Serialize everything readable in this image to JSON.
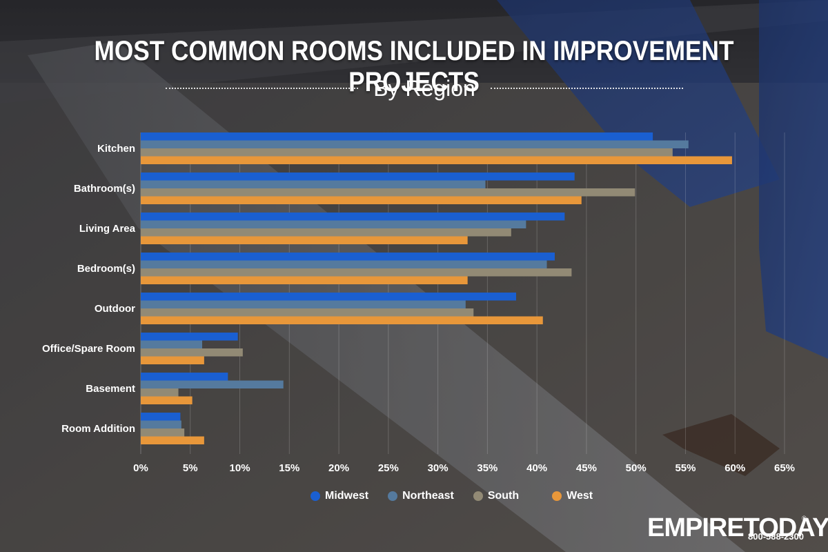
{
  "header": {
    "title": "MOST COMMON ROOMS INCLUDED IN IMPROVEMENT PROJECTS",
    "subtitle": "By Region"
  },
  "logo": {
    "text": "EMPIRETODAY",
    "phone": "800-588-2300",
    "reg": "®"
  },
  "colors": {
    "Midwest": "#1a5fd1",
    "Northeast": "#557a9e",
    "South": "#928a75",
    "West": "#e8973a"
  },
  "chart_data": {
    "type": "bar",
    "orientation": "horizontal",
    "title": "MOST COMMON ROOMS INCLUDED IN IMPROVEMENT PROJECTS",
    "subtitle": "By Region",
    "categories": [
      "Kitchen",
      "Bathroom(s)",
      "Living Area",
      "Bedroom(s)",
      "Outdoor",
      "Office/Spare Room",
      "Basement",
      "Room Addition"
    ],
    "series": [
      {
        "name": "Midwest",
        "values": [
          51.7,
          43.8,
          42.8,
          41.8,
          37.9,
          9.8,
          8.8,
          4.0
        ]
      },
      {
        "name": "Northeast",
        "values": [
          55.3,
          34.8,
          38.9,
          41.0,
          32.8,
          6.2,
          14.4,
          4.1
        ]
      },
      {
        "name": "South",
        "values": [
          53.7,
          49.9,
          37.4,
          43.5,
          33.6,
          10.3,
          3.8,
          4.4
        ]
      },
      {
        "name": "West",
        "values": [
          59.7,
          44.5,
          33.0,
          33.0,
          40.6,
          6.4,
          5.2,
          6.4
        ]
      }
    ],
    "xlim": [
      0,
      65
    ],
    "xticks": [
      "0%",
      "5%",
      "10%",
      "15%",
      "20%",
      "25%",
      "30%",
      "35%",
      "40%",
      "45%",
      "50%",
      "55%",
      "60%",
      "65%"
    ],
    "xtick_values": [
      0,
      5,
      10,
      15,
      20,
      25,
      30,
      35,
      40,
      45,
      50,
      55,
      60,
      65
    ],
    "grid": true,
    "legend": "bottom"
  }
}
